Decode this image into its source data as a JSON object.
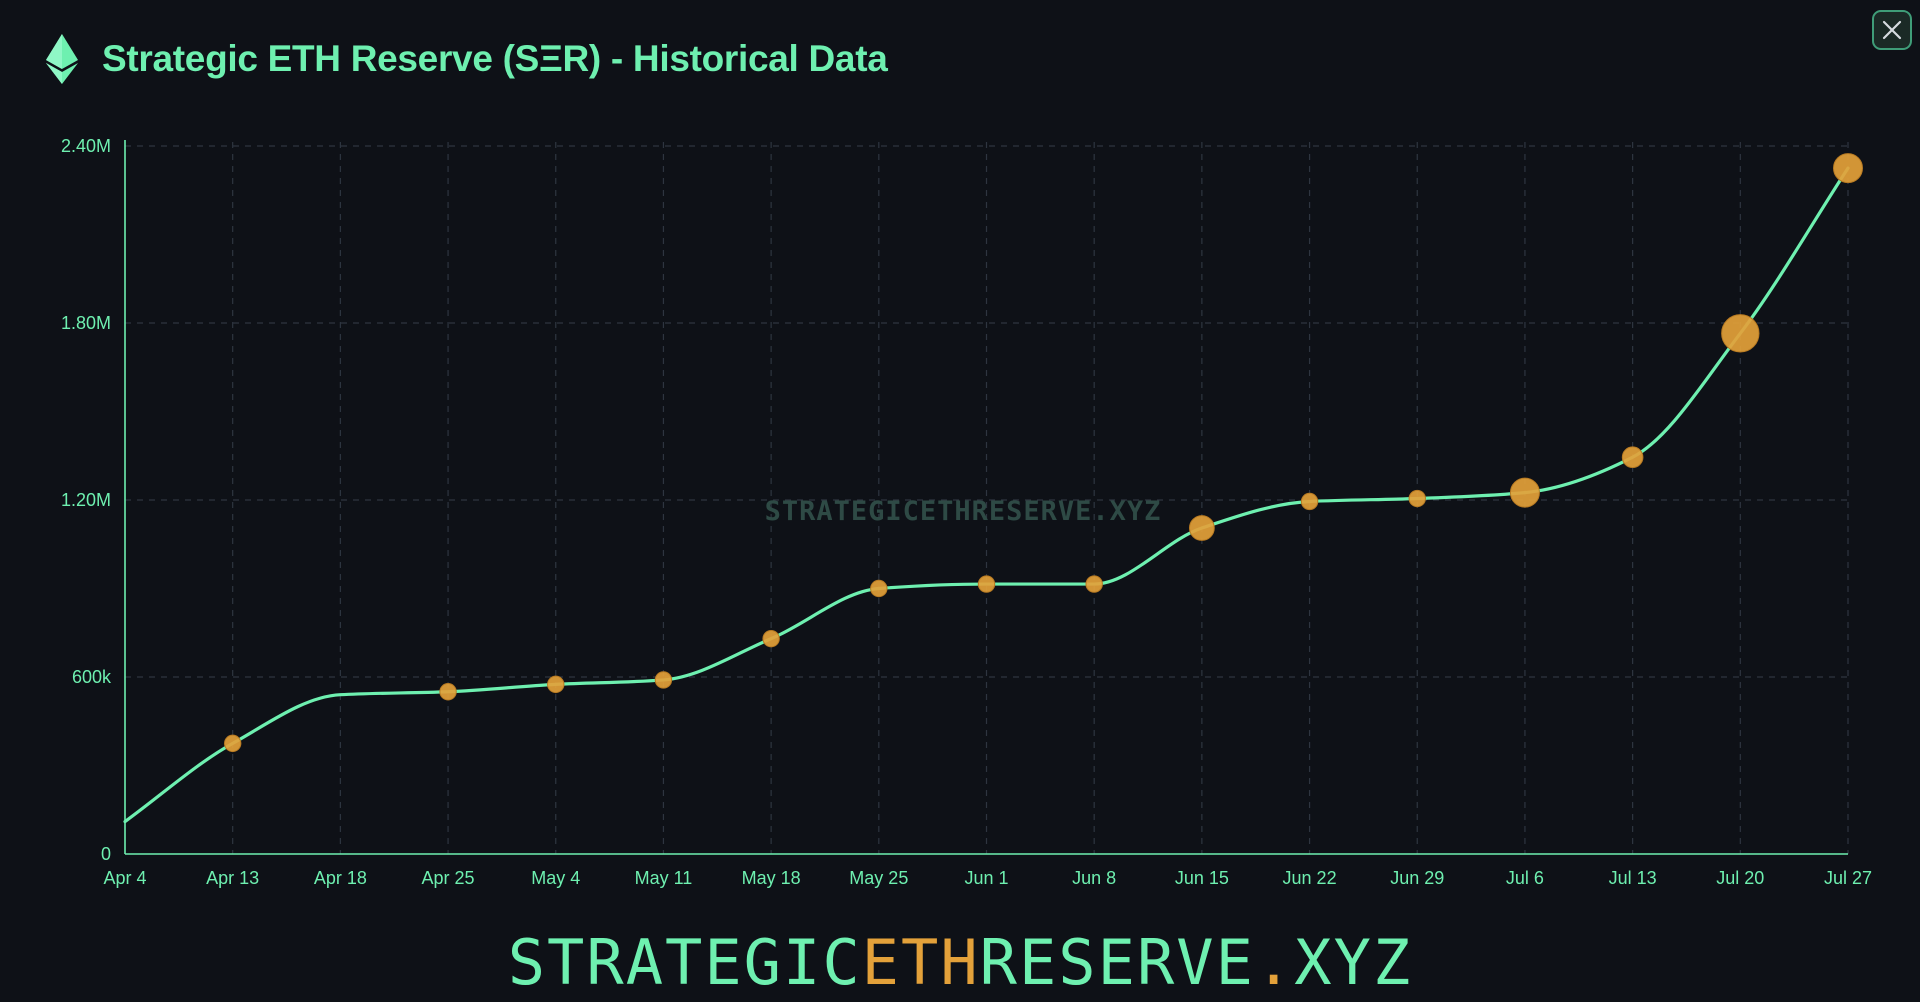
{
  "header": {
    "title": "Strategic ETH Reserve (SΞR) - Historical Data",
    "logo_icon": "ethereum-icon",
    "close_icon": "close-icon"
  },
  "colors": {
    "background": "#0e1117",
    "line": "#6ef0b0",
    "marker": "#e3a13a",
    "grid": "#2e3540",
    "watermark": "#2e4a45"
  },
  "chart_data": {
    "type": "line",
    "title": "",
    "xlabel": "",
    "ylabel": "",
    "ylim": [
      0,
      2400000
    ],
    "y_ticks": [
      0,
      600000,
      1200000,
      1800000,
      2400000
    ],
    "y_tick_labels": [
      "0",
      "600k",
      "1.20M",
      "1.80M",
      "2.40M"
    ],
    "x_tick_labels": [
      "Apr 4",
      "Apr 13",
      "Apr 18",
      "Apr 25",
      "May 4",
      "May 11",
      "May 18",
      "May 25",
      "Jun 1",
      "Jun 8",
      "Jun 15",
      "Jun 22",
      "Jun 29",
      "Jul 6",
      "Jul 13",
      "Jul 20",
      "Jul 27"
    ],
    "grid": true,
    "legend": "none",
    "watermark": "STRATEGICETHRESERVE.XYZ",
    "series": [
      {
        "values": [
          110000,
          375000,
          540000,
          550000,
          575000,
          590000,
          730000,
          900000,
          915000,
          915000,
          1105000,
          1195000,
          1205000,
          1225000,
          1345000,
          1765000,
          2325000
        ],
        "marker_sizes": [
          0,
          1,
          0,
          1,
          1,
          1,
          1,
          1,
          1,
          1,
          2,
          1,
          1,
          2.5,
          1.5,
          3.5,
          2.5
        ]
      }
    ]
  },
  "footer": {
    "brand_part1": "STRATEGIC",
    "brand_part2": "ETH",
    "brand_part3": "RESERVE",
    "brand_part4": ".",
    "brand_part5": "XYZ"
  }
}
